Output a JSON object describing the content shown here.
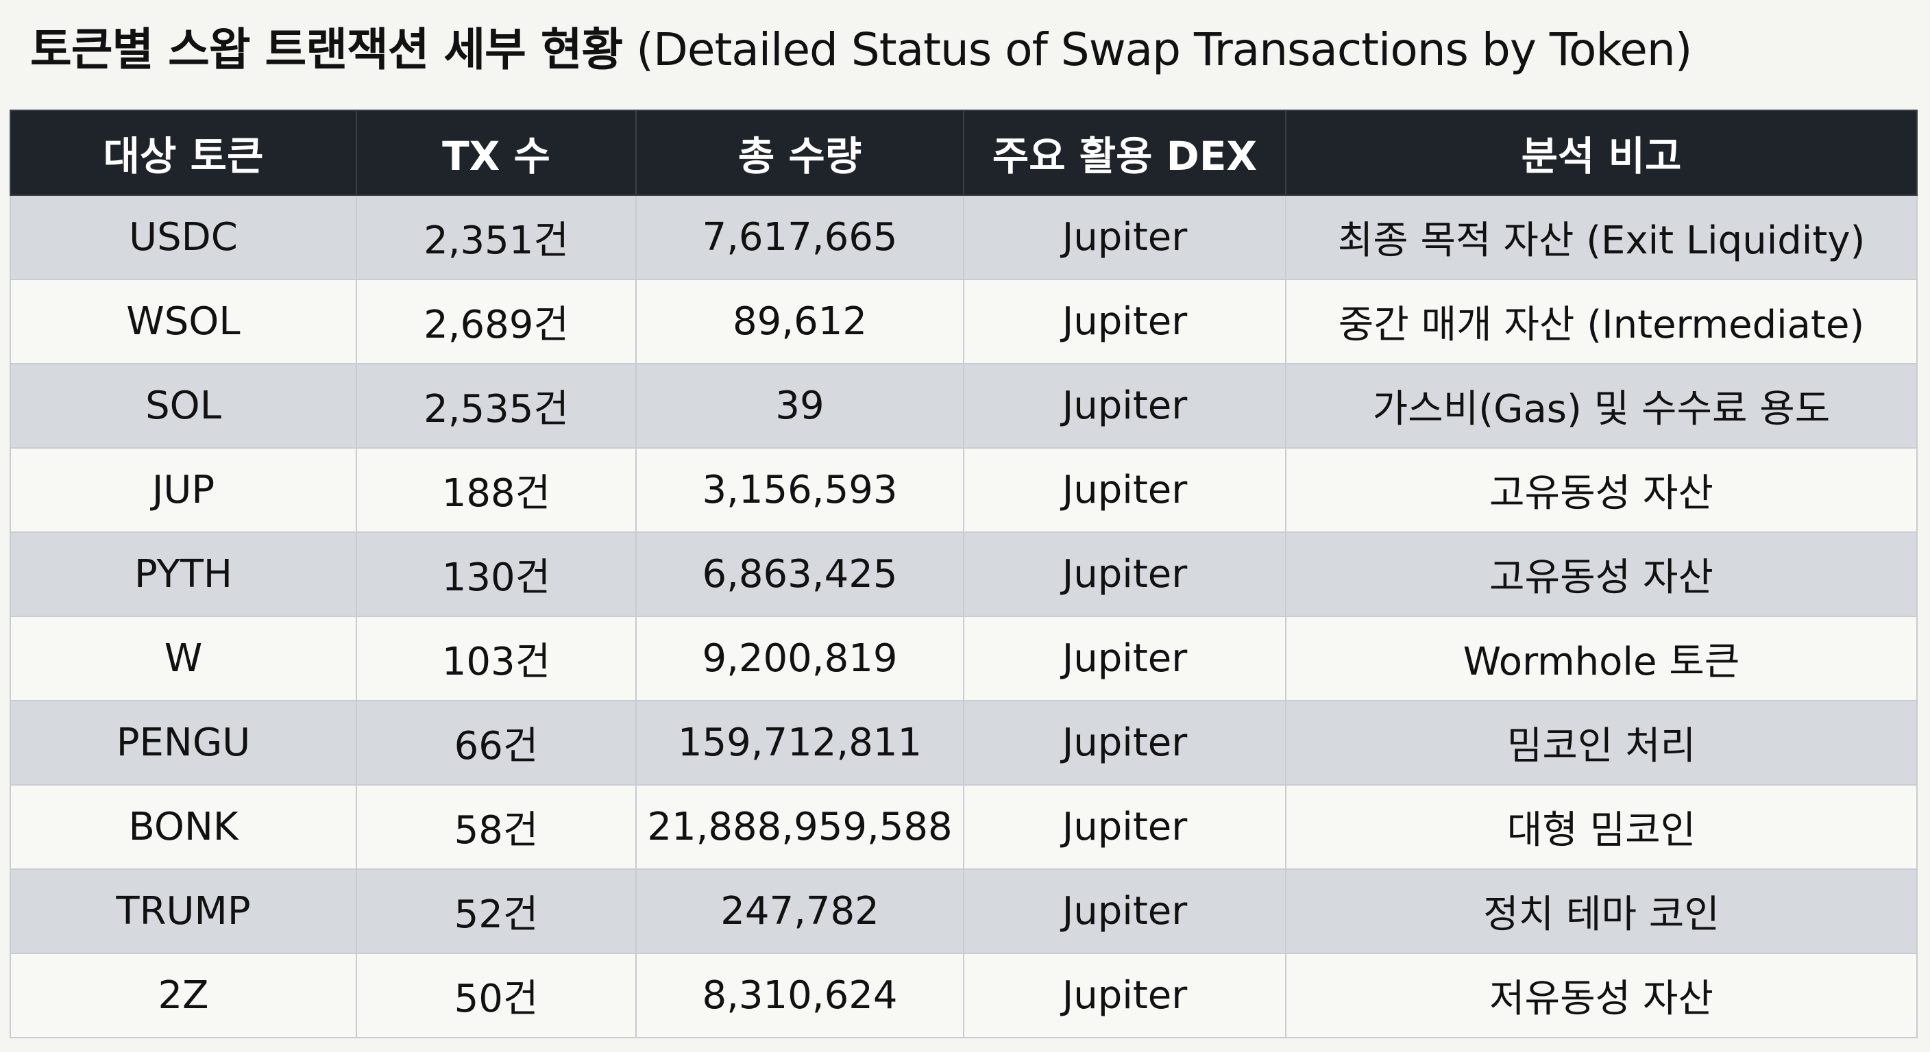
{
  "title": {
    "korean": "토큰별 스왑 트랜잭션 세부 현황",
    "english": "(Detailed Status of Swap Transactions by Token)"
  },
  "table": {
    "headers": [
      "대상 토큰",
      "TX 수",
      "총 수량",
      "주요 활용 DEX",
      "분석 비고"
    ],
    "rows": [
      [
        "USDC",
        "2,351건",
        "7,617,665",
        "Jupiter",
        "최종 목적 자산 (Exit Liquidity)"
      ],
      [
        "WSOL",
        "2,689건",
        "89,612",
        "Jupiter",
        "중간 매개 자산 (Intermediate)"
      ],
      [
        "SOL",
        "2,535건",
        "39",
        "Jupiter",
        "가스비(Gas) 및 수수료 용도"
      ],
      [
        "JUP",
        "188건",
        "3,156,593",
        "Jupiter",
        "고유동성 자산"
      ],
      [
        "PYTH",
        "130건",
        "6,863,425",
        "Jupiter",
        "고유동성 자산"
      ],
      [
        "W",
        "103건",
        "9,200,819",
        "Jupiter",
        "Wormhole 토큰"
      ],
      [
        "PENGU",
        "66건",
        "159,712,811",
        "Jupiter",
        "밈코인 처리"
      ],
      [
        "BONK",
        "58건",
        "21,888,959,588",
        "Jupiter",
        "대형 밈코인"
      ],
      [
        "TRUMP",
        "52건",
        "247,782",
        "Jupiter",
        "정치 테마 코인"
      ],
      [
        "2Z",
        "50건",
        "8,310,624",
        "Jupiter",
        "저유동성 자산"
      ]
    ]
  },
  "colors": {
    "header_bg": "#1f232a",
    "row_shaded": "#d6dade",
    "row_plain": "#f8f8f5",
    "page_bg": "#f5f5f2"
  }
}
